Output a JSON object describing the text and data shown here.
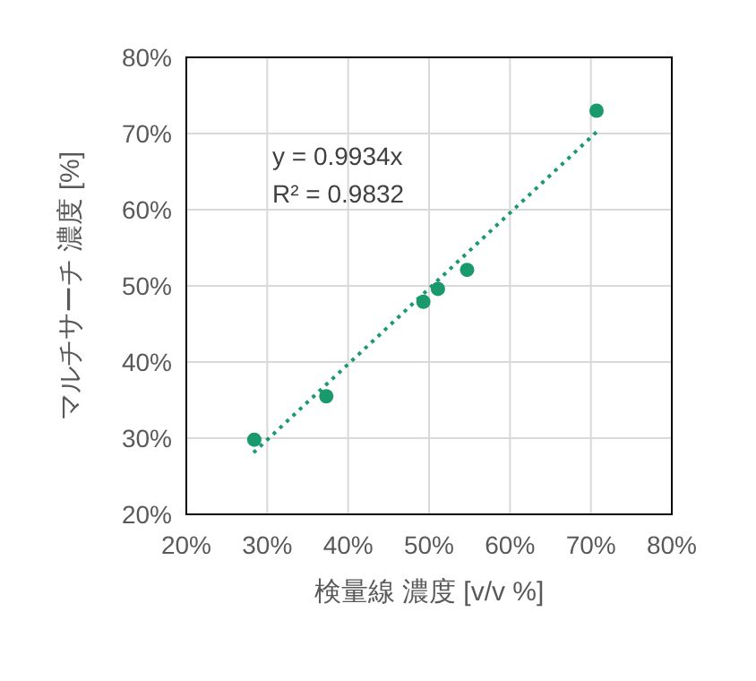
{
  "chart_data": {
    "type": "scatter",
    "xlabel": "検量線 濃度 [v/v %]",
    "ylabel": "マルチサーチ 濃度 [%]",
    "annotations": [
      "y = 0.9934x",
      "R² = 0.9832"
    ],
    "series": [
      {
        "type": "scatter",
        "color": "#1a9a6c",
        "marker": "circle",
        "x": [
          28.4,
          37.3,
          49.3,
          51.1,
          54.7,
          70.7
        ],
        "values": [
          29.8,
          35.5,
          47.9,
          49.6,
          52.1,
          73.0
        ]
      },
      {
        "type": "line",
        "color": "#1a9a6c",
        "line_style": "dotted",
        "x": [
          28.3,
          70.7
        ],
        "values": [
          28.1,
          70.2
        ]
      }
    ],
    "xlim": [
      20,
      80
    ],
    "xticks": [
      {
        "value": 20,
        "label": "20%"
      },
      {
        "value": 30,
        "label": "30%"
      },
      {
        "value": 40,
        "label": "40%"
      },
      {
        "value": 50,
        "label": "50%"
      },
      {
        "value": 60,
        "label": "60%"
      },
      {
        "value": 70,
        "label": "70%"
      },
      {
        "value": 80,
        "label": "80%"
      }
    ],
    "ylim": [
      20,
      80
    ],
    "yticks": [
      {
        "value": 20,
        "label": "20%"
      },
      {
        "value": 30,
        "label": "30%"
      },
      {
        "value": 40,
        "label": "40%"
      },
      {
        "value": 50,
        "label": "50%"
      },
      {
        "value": 60,
        "label": "60%"
      },
      {
        "value": 70,
        "label": "70%"
      },
      {
        "value": 80,
        "label": "80%"
      }
    ],
    "grid": true
  }
}
